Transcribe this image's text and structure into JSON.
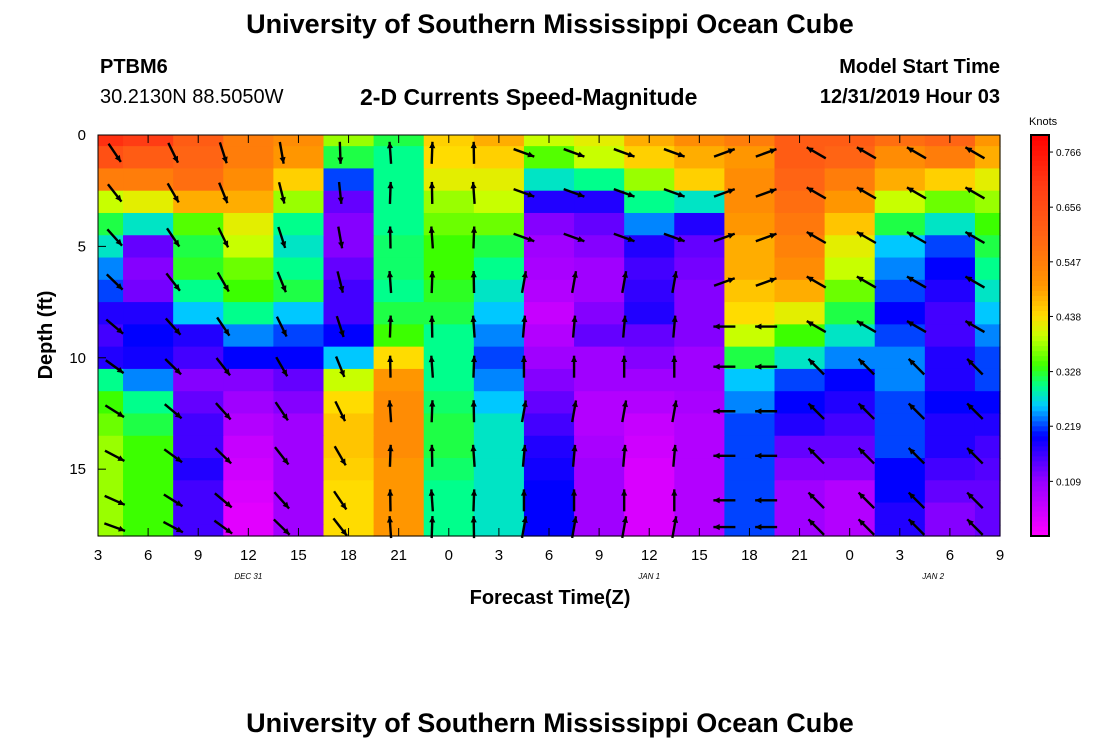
{
  "header": {
    "title": "University of Southern Mississippi Ocean Cube",
    "station": "PTBM6",
    "coords": "30.2130N 88.5050W",
    "subtitle": "2-D Currents Speed-Magnitude",
    "model_label": "Model Start Time",
    "model_time": "12/31/2019 Hour 03"
  },
  "footer": {
    "title": "University of Southern Mississippi Ocean Cube"
  },
  "chart_data": {
    "type": "heatmap",
    "xlabel": "Forecast Time(Z)",
    "ylabel": "Depth (ft)",
    "x_tick_labels": [
      "3",
      "6",
      "9",
      "12",
      "15",
      "18",
      "21",
      "0",
      "3",
      "6",
      "9",
      "12",
      "15",
      "18",
      "21",
      "0",
      "3",
      "6",
      "9"
    ],
    "x_tick_hours": [
      0,
      3,
      6,
      9,
      12,
      15,
      18,
      21,
      24,
      27,
      30,
      33,
      36,
      39,
      42,
      45,
      48,
      51,
      54
    ],
    "date_labels": [
      {
        "text": "DEC 31",
        "hour": 9
      },
      {
        "text": "JAN 1",
        "hour": 33
      },
      {
        "text": "JAN 2",
        "hour": 50
      }
    ],
    "xlim": [
      0,
      54
    ],
    "y_ticks": [
      "0",
      "5",
      "10",
      "15"
    ],
    "y_tick_values": [
      0,
      5,
      10,
      15
    ],
    "ylim": [
      0,
      18
    ],
    "colorbar": {
      "title": "Knots",
      "ticks": [
        "0.766",
        "0.656",
        "0.547",
        "0.438",
        "0.328",
        "0.219",
        "0.109"
      ],
      "tick_values": [
        0.766,
        0.656,
        0.547,
        0.438,
        0.328,
        0.219,
        0.109
      ],
      "range": [
        0,
        0.8
      ]
    },
    "grid": false,
    "legend": "right",
    "column_hours": [
      0,
      3,
      6,
      9,
      12,
      15,
      18,
      21,
      24,
      27,
      30,
      33,
      36,
      39,
      42,
      45,
      48,
      51,
      54
    ],
    "row_depths": [
      0,
      1,
      2,
      3,
      4,
      5,
      6,
      7,
      8,
      9,
      10,
      11,
      12,
      13,
      14,
      15,
      16,
      17,
      18
    ],
    "speed_knots": [
      [
        0.72,
        0.7,
        0.62,
        0.55,
        0.52,
        0.38,
        0.32,
        0.45,
        0.48,
        0.4,
        0.42,
        0.48,
        0.52,
        0.55,
        0.62,
        0.62,
        0.58,
        0.6,
        0.5
      ],
      [
        0.65,
        0.62,
        0.6,
        0.55,
        0.5,
        0.32,
        0.3,
        0.44,
        0.45,
        0.35,
        0.4,
        0.45,
        0.48,
        0.5,
        0.62,
        0.6,
        0.52,
        0.55,
        0.48
      ],
      [
        0.55,
        0.55,
        0.58,
        0.52,
        0.45,
        0.22,
        0.3,
        0.42,
        0.42,
        0.28,
        0.3,
        0.38,
        0.45,
        0.52,
        0.6,
        0.55,
        0.48,
        0.45,
        0.42
      ],
      [
        0.4,
        0.42,
        0.48,
        0.48,
        0.38,
        0.14,
        0.3,
        0.38,
        0.4,
        0.18,
        0.18,
        0.3,
        0.28,
        0.52,
        0.58,
        0.5,
        0.4,
        0.36,
        0.38
      ],
      [
        0.32,
        0.28,
        0.35,
        0.42,
        0.3,
        0.12,
        0.3,
        0.36,
        0.36,
        0.12,
        0.14,
        0.24,
        0.18,
        0.5,
        0.56,
        0.46,
        0.32,
        0.28,
        0.34
      ],
      [
        0.28,
        0.14,
        0.32,
        0.4,
        0.28,
        0.12,
        0.31,
        0.34,
        0.32,
        0.1,
        0.12,
        0.18,
        0.14,
        0.48,
        0.54,
        0.42,
        0.26,
        0.22,
        0.32
      ],
      [
        0.24,
        0.12,
        0.33,
        0.36,
        0.3,
        0.14,
        0.31,
        0.34,
        0.3,
        0.09,
        0.1,
        0.16,
        0.13,
        0.48,
        0.52,
        0.4,
        0.24,
        0.2,
        0.3
      ],
      [
        0.22,
        0.13,
        0.3,
        0.34,
        0.32,
        0.16,
        0.3,
        0.33,
        0.28,
        0.08,
        0.1,
        0.17,
        0.12,
        0.46,
        0.48,
        0.36,
        0.22,
        0.18,
        0.28
      ],
      [
        0.18,
        0.18,
        0.26,
        0.3,
        0.26,
        0.16,
        0.32,
        0.32,
        0.26,
        0.06,
        0.12,
        0.18,
        0.12,
        0.44,
        0.42,
        0.32,
        0.2,
        0.16,
        0.26
      ],
      [
        0.16,
        0.2,
        0.18,
        0.24,
        0.22,
        0.2,
        0.34,
        0.3,
        0.24,
        0.08,
        0.14,
        0.14,
        0.12,
        0.4,
        0.34,
        0.28,
        0.22,
        0.16,
        0.24
      ],
      [
        0.18,
        0.19,
        0.16,
        0.2,
        0.2,
        0.26,
        0.44,
        0.3,
        0.22,
        0.1,
        0.1,
        0.12,
        0.1,
        0.32,
        0.28,
        0.24,
        0.24,
        0.18,
        0.22
      ],
      [
        0.3,
        0.24,
        0.12,
        0.12,
        0.14,
        0.4,
        0.5,
        0.3,
        0.24,
        0.12,
        0.1,
        0.1,
        0.1,
        0.26,
        0.22,
        0.2,
        0.24,
        0.18,
        0.22
      ],
      [
        0.34,
        0.3,
        0.14,
        0.1,
        0.12,
        0.44,
        0.52,
        0.31,
        0.26,
        0.14,
        0.08,
        0.08,
        0.09,
        0.24,
        0.2,
        0.18,
        0.22,
        0.2,
        0.2
      ],
      [
        0.36,
        0.32,
        0.16,
        0.08,
        0.1,
        0.46,
        0.52,
        0.32,
        0.28,
        0.16,
        0.08,
        0.06,
        0.08,
        0.22,
        0.18,
        0.16,
        0.22,
        0.18,
        0.18
      ],
      [
        0.38,
        0.34,
        0.16,
        0.06,
        0.1,
        0.46,
        0.52,
        0.32,
        0.28,
        0.18,
        0.09,
        0.05,
        0.08,
        0.22,
        0.14,
        0.14,
        0.22,
        0.18,
        0.16
      ],
      [
        0.38,
        0.34,
        0.18,
        0.05,
        0.1,
        0.45,
        0.5,
        0.31,
        0.28,
        0.19,
        0.1,
        0.04,
        0.08,
        0.22,
        0.12,
        0.12,
        0.2,
        0.16,
        0.15
      ],
      [
        0.38,
        0.34,
        0.16,
        0.04,
        0.1,
        0.44,
        0.5,
        0.3,
        0.28,
        0.2,
        0.1,
        0.04,
        0.08,
        0.22,
        0.1,
        0.08,
        0.2,
        0.14,
        0.14
      ],
      [
        0.38,
        0.34,
        0.16,
        0.03,
        0.1,
        0.44,
        0.5,
        0.3,
        0.28,
        0.2,
        0.1,
        0.04,
        0.08,
        0.22,
        0.1,
        0.08,
        0.18,
        0.12,
        0.14
      ],
      [
        0.38,
        0.34,
        0.16,
        0.03,
        0.1,
        0.44,
        0.5,
        0.3,
        0.28,
        0.2,
        0.1,
        0.04,
        0.08,
        0.22,
        0.1,
        0.08,
        0.18,
        0.12,
        0.14
      ]
    ]
  }
}
